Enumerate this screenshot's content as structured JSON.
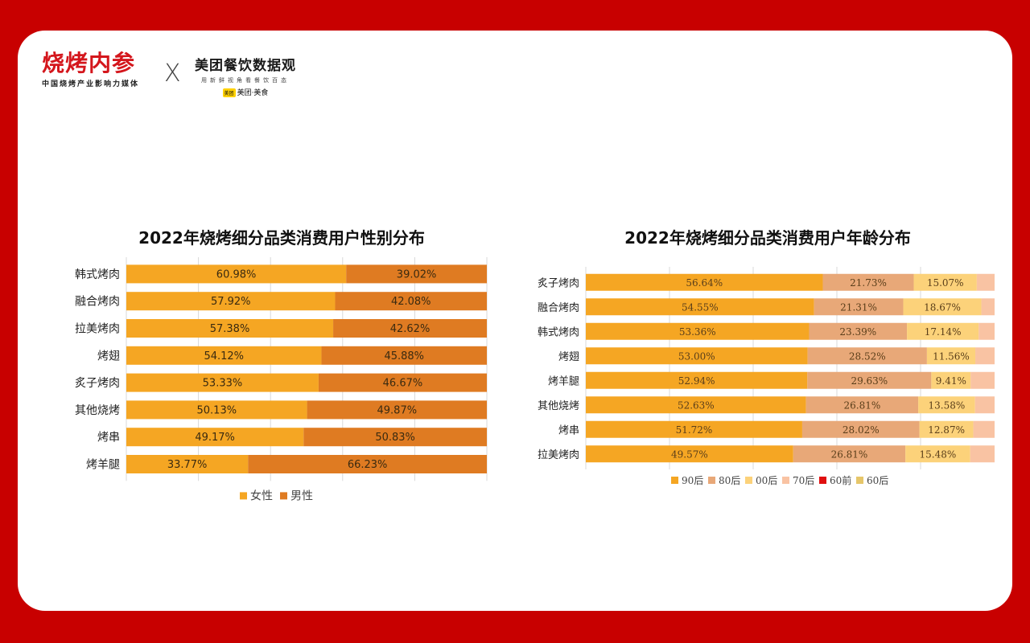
{
  "brand": {
    "left_title": "烧烤内参",
    "left_subtitle": "中国烧烤产业影响力媒体",
    "separator": "X",
    "right_title": "美团餐饮数据观",
    "right_subtitle": "用新鲜视角看餐饮百态",
    "right_logo_mark": "美团",
    "right_logo_text": "美团·美食"
  },
  "colors": {
    "background": "#c80000",
    "female": "#f5a623",
    "male": "#df7b22",
    "age_90": "#f5a623",
    "age_80": "#e8a878",
    "age_00": "#fcd27a",
    "age_70": "#f9c3a3",
    "age_60_before": "#e01010",
    "age_60": "#e6c66a"
  },
  "chart_data": [
    {
      "type": "bar",
      "orientation": "horizontal",
      "stacked": "percent",
      "title": "2022年烧烤细分品类消费用户性别分布",
      "categories": [
        "韩式烤肉",
        "融合烤肉",
        "拉美烤肉",
        "烤翅",
        "炙子烤肉",
        "其他烧烤",
        "烤串",
        "烤羊腿"
      ],
      "series": [
        {
          "name": "女性",
          "values": [
            60.98,
            57.92,
            57.38,
            54.12,
            53.33,
            50.13,
            49.17,
            33.77
          ],
          "labels": [
            "60.98%",
            "57.92%",
            "57.38%",
            "54.12%",
            "53.33%",
            "50.13%",
            "49.17%",
            "33.77%"
          ]
        },
        {
          "name": "男性",
          "values": [
            39.02,
            42.08,
            42.62,
            45.88,
            46.67,
            49.87,
            50.83,
            66.23
          ],
          "labels": [
            "39.02%",
            "42.08%",
            "42.62%",
            "45.88%",
            "46.67%",
            "49.87%",
            "50.83%",
            "66.23%"
          ]
        }
      ],
      "xlim": [
        0,
        100
      ],
      "grid": true,
      "legend": "bottom"
    },
    {
      "type": "bar",
      "orientation": "horizontal",
      "stacked": "percent",
      "title": "2022年烧烤细分品类消费用户年龄分布",
      "categories": [
        "炙子烤肉",
        "融合烤肉",
        "韩式烤肉",
        "烤翅",
        "烤羊腿",
        "其他烧烤",
        "烤串",
        "拉美烤肉"
      ],
      "series": [
        {
          "name": "90后",
          "values": [
            56.64,
            54.55,
            53.36,
            53.0,
            52.94,
            52.63,
            51.72,
            49.57
          ],
          "labels": [
            "56.64%",
            "54.55%",
            "53.36%",
            "53.00%",
            "52.94%",
            "52.63%",
            "51.72%",
            "49.57%"
          ]
        },
        {
          "name": "80后",
          "values": [
            21.73,
            21.31,
            23.39,
            28.52,
            29.63,
            26.81,
            28.02,
            26.81
          ],
          "labels": [
            "21.73%",
            "21.31%",
            "23.39%",
            "28.52%",
            "29.63%",
            "26.81%",
            "28.02%",
            "26.81%"
          ]
        },
        {
          "name": "00后",
          "values": [
            15.07,
            18.67,
            17.14,
            11.56,
            9.41,
            13.58,
            12.87,
            15.48
          ],
          "labels": [
            "15.07%",
            "18.67%",
            "17.14%",
            "11.56%",
            "9.41%",
            "13.58%",
            "12.87%",
            "15.48%"
          ]
        },
        {
          "name": "70后",
          "values": [
            5.5,
            4.6,
            5.2,
            5.9,
            6.3,
            5.9,
            5.9,
            7.4
          ],
          "labels": [
            "",
            "",
            "",
            "",
            "",
            "",
            "",
            ""
          ]
        },
        {
          "name": "60前",
          "values": [
            0.5,
            0.4,
            0.5,
            0.5,
            0.5,
            0.5,
            0.5,
            0.5
          ],
          "labels": [
            "",
            "",
            "",
            "",
            "",
            "",
            "",
            ""
          ]
        },
        {
          "name": "60后",
          "values": [
            0.56,
            0.47,
            0.41,
            0.52,
            1.22,
            0.58,
            0.99,
            0.24
          ],
          "labels": [
            "",
            "",
            "",
            "",
            "",
            "",
            "",
            ""
          ]
        }
      ],
      "xlim": [
        0,
        100
      ],
      "grid": true,
      "legend": "bottom"
    }
  ]
}
